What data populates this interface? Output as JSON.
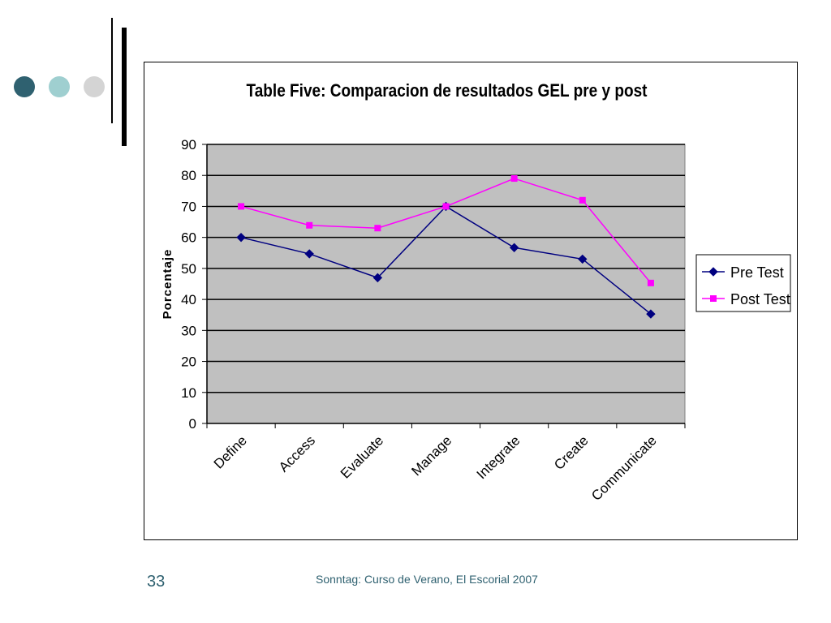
{
  "slide": {
    "page_number": "33",
    "footer": "Sonntag: Curso de Verano, El Escorial 2007",
    "dot_colors": [
      "#2f6170",
      "#9fcfd0",
      "#d4d4d4"
    ]
  },
  "chart_data": {
    "type": "line",
    "title": "Table Five: Comparacion de resultados GEL pre y post",
    "xlabel": "",
    "ylabel": "Porcentaje",
    "categories": [
      "Define",
      "Access",
      "Evaluate",
      "Manage",
      "Integrate",
      "Create",
      "Communicate"
    ],
    "ylim": [
      0,
      90
    ],
    "yticks": [
      "0",
      "10",
      "20",
      "30",
      "40",
      "50",
      "60",
      "70",
      "80",
      "90"
    ],
    "grid": true,
    "plot_background": "#c0c0c0",
    "legend_position": "right",
    "series": [
      {
        "name": "Pre Test",
        "color": "#000080",
        "marker": "diamond",
        "values": [
          60,
          54.7,
          47,
          70,
          56.7,
          53,
          35.3
        ]
      },
      {
        "name": "Post Test",
        "color": "#ff00ff",
        "marker": "square",
        "values": [
          70,
          63.9,
          63,
          70,
          79,
          72,
          45.3
        ]
      }
    ]
  }
}
